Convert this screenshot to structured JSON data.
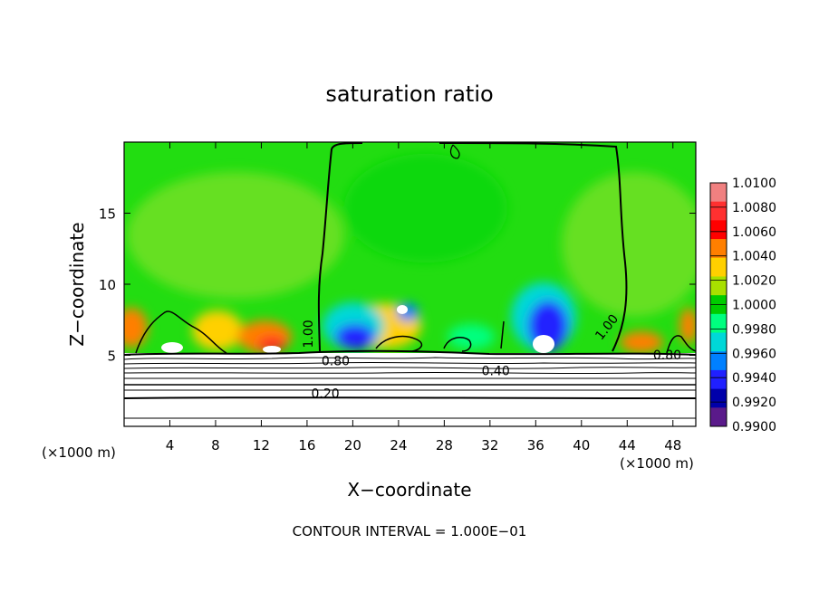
{
  "chart_data": {
    "type": "heatmap",
    "title": "saturation ratio",
    "xlabel": "X−coordinate",
    "ylabel": "Z−coordinate",
    "x_unit_label": "(×1000 m)",
    "x_unit_label_right": "(×1000 m)",
    "xlim": [
      0,
      50
    ],
    "ylim": [
      0,
      20
    ],
    "x_ticks": [
      4,
      8,
      12,
      16,
      20,
      24,
      28,
      32,
      36,
      40,
      44,
      48
    ],
    "y_ticks": [
      5,
      10,
      15
    ],
    "colorbar": {
      "levels": [
        "1.0100",
        "1.0080",
        "1.0060",
        "1.0040",
        "1.0020",
        "1.0000",
        "0.9980",
        "0.9960",
        "0.9940",
        "0.9920",
        "0.9900"
      ],
      "colors": [
        "#f08080",
        "#ff3030",
        "#ff0000",
        "#ff7f00",
        "#ffd000",
        "#a8e000",
        "#00cc00",
        "#00ff7f",
        "#00d8d8",
        "#0080ff",
        "#2020ff",
        "#0000aa",
        "#5a1a8a"
      ]
    },
    "contour_labels": [
      {
        "text": "1.00",
        "x": 16.5,
        "z": 6.5
      },
      {
        "text": "1.00",
        "x": 42.5,
        "z": 6.8
      },
      {
        "text": "0.80",
        "x": 18.5,
        "z": 4.3
      },
      {
        "text": "0.80",
        "x": 47.5,
        "z": 4.7
      },
      {
        "text": "0.40",
        "x": 32.5,
        "z": 3.6
      },
      {
        "text": "0.20",
        "x": 17.6,
        "z": 2.0
      }
    ],
    "footer": "CONTOUR INTERVAL = 1.000E−01"
  }
}
